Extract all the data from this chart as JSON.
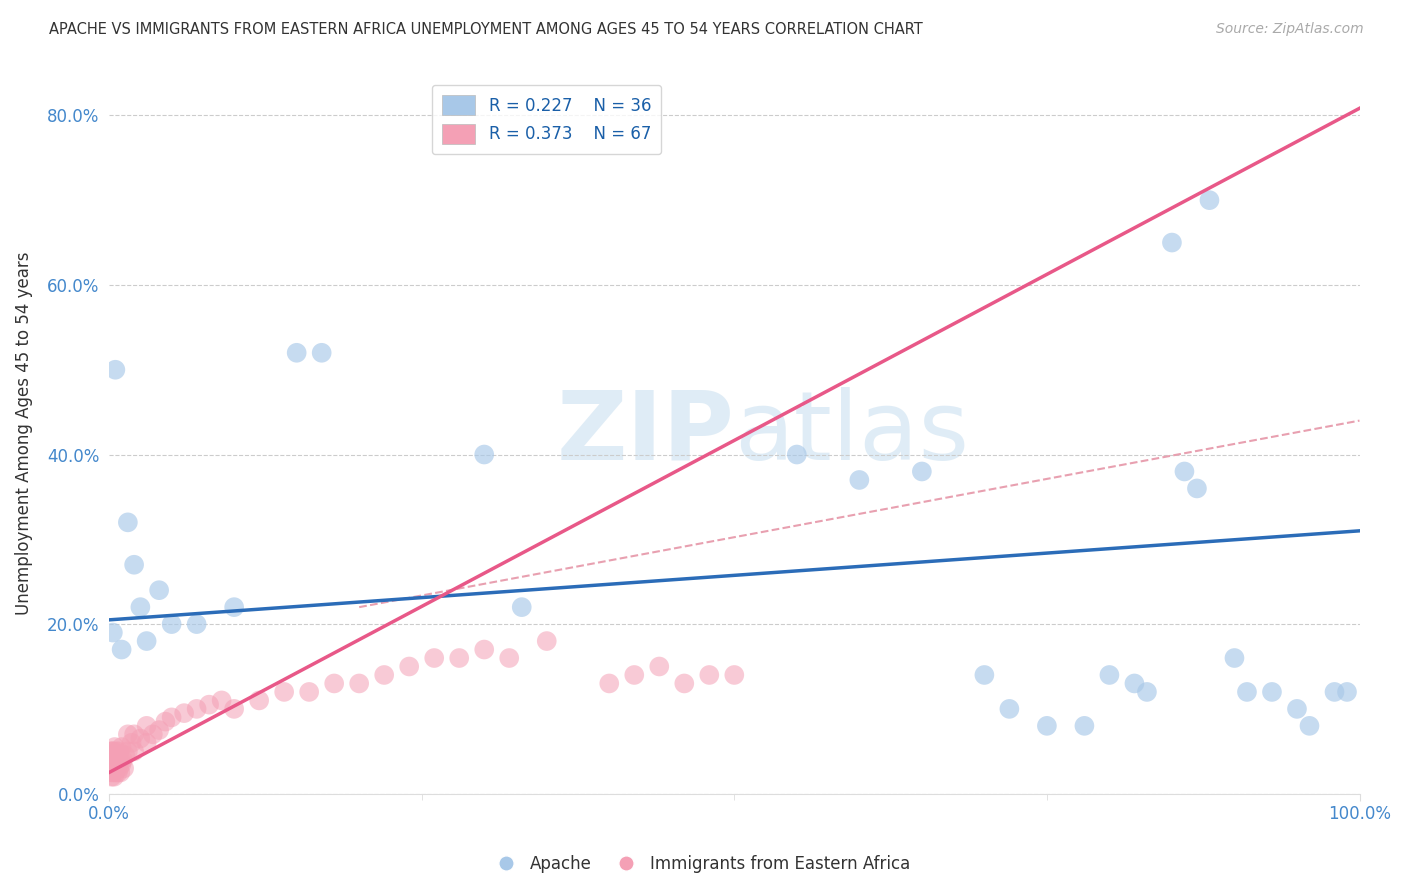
{
  "title": "APACHE VS IMMIGRANTS FROM EASTERN AFRICA UNEMPLOYMENT AMONG AGES 45 TO 54 YEARS CORRELATION CHART",
  "source": "Source: ZipAtlas.com",
  "ylabel": "Unemployment Among Ages 45 to 54 years",
  "xlim": [
    0,
    100
  ],
  "ylim": [
    0,
    85
  ],
  "yticks": [
    0,
    20,
    40,
    60,
    80
  ],
  "ytick_labels": [
    "0.0%",
    "20.0%",
    "40.0%",
    "60.0%",
    "80.0%"
  ],
  "xtick_labels": [
    "0.0%",
    "100.0%"
  ],
  "legend_r1": "R = 0.227",
  "legend_n1": "N = 36",
  "legend_r2": "R = 0.373",
  "legend_n2": "N = 67",
  "blue_color": "#a8c8e8",
  "pink_color": "#f4a0b5",
  "blue_line_color": "#2b6cb8",
  "pink_line_color": "#e85888",
  "dashed_line_color": "#e8a0b0",
  "watermark_zip": "ZIP",
  "watermark_atlas": "atlas",
  "apache_x": [
    0.3,
    0.5,
    1.0,
    1.5,
    2.0,
    2.5,
    3.0,
    4.0,
    5.0,
    7.0,
    10.0,
    15.0,
    17.0,
    30.0,
    33.0,
    55.0,
    60.0,
    65.0,
    70.0,
    72.0,
    75.0,
    78.0,
    80.0,
    82.0,
    83.0,
    85.0,
    86.0,
    87.0,
    88.0,
    90.0,
    91.0,
    93.0,
    95.0,
    96.0,
    98.0,
    99.0
  ],
  "apache_y": [
    19.0,
    50.0,
    17.0,
    32.0,
    27.0,
    22.0,
    18.0,
    24.0,
    20.0,
    20.0,
    22.0,
    52.0,
    52.0,
    40.0,
    22.0,
    40.0,
    37.0,
    38.0,
    14.0,
    10.0,
    8.0,
    8.0,
    14.0,
    13.0,
    12.0,
    65.0,
    38.0,
    36.0,
    70.0,
    16.0,
    12.0,
    12.0,
    10.0,
    8.0,
    12.0,
    12.0
  ],
  "pink_x": [
    0.05,
    0.1,
    0.1,
    0.15,
    0.15,
    0.2,
    0.2,
    0.25,
    0.25,
    0.3,
    0.3,
    0.35,
    0.35,
    0.4,
    0.4,
    0.45,
    0.45,
    0.5,
    0.5,
    0.6,
    0.6,
    0.7,
    0.7,
    0.8,
    0.8,
    0.9,
    0.9,
    1.0,
    1.0,
    1.1,
    1.2,
    1.3,
    1.5,
    1.5,
    1.8,
    2.0,
    2.0,
    2.5,
    3.0,
    3.0,
    3.5,
    4.0,
    4.5,
    5.0,
    6.0,
    7.0,
    8.0,
    9.0,
    10.0,
    12.0,
    14.0,
    16.0,
    18.0,
    20.0,
    22.0,
    24.0,
    26.0,
    28.0,
    30.0,
    32.0,
    35.0,
    40.0,
    42.0,
    44.0,
    46.0,
    48.0,
    50.0
  ],
  "pink_y": [
    3.0,
    2.5,
    4.0,
    3.5,
    5.0,
    2.0,
    4.5,
    3.0,
    5.0,
    2.5,
    4.5,
    3.0,
    5.0,
    2.0,
    4.0,
    3.5,
    5.5,
    2.5,
    4.0,
    3.0,
    5.0,
    2.5,
    4.5,
    3.0,
    5.0,
    2.5,
    4.0,
    3.5,
    5.5,
    4.0,
    3.0,
    4.5,
    5.0,
    7.0,
    6.0,
    5.0,
    7.0,
    6.5,
    6.0,
    8.0,
    7.0,
    7.5,
    8.5,
    9.0,
    9.5,
    10.0,
    10.5,
    11.0,
    10.0,
    11.0,
    12.0,
    12.0,
    13.0,
    13.0,
    14.0,
    15.0,
    16.0,
    16.0,
    17.0,
    16.0,
    18.0,
    13.0,
    14.0,
    15.0,
    13.0,
    14.0,
    14.0
  ],
  "blue_line_x0": 0,
  "blue_line_y0": 20.5,
  "blue_line_x1": 100,
  "blue_line_y1": 31.0,
  "pink_line_x0": 0,
  "pink_line_y0": 2.5,
  "pink_line_x1": 30,
  "pink_line_y1": 26.0,
  "dashed_line_x0": 20,
  "dashed_line_y0": 22.0,
  "dashed_line_x1": 100,
  "dashed_line_y1": 44.0
}
